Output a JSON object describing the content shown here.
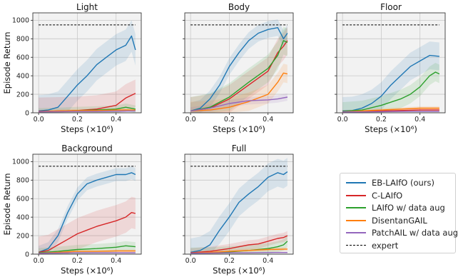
{
  "chart_data": {
    "type": "line",
    "ylabel": "Episode Return",
    "xlabel": "Steps (×10⁶)",
    "x_ticks": [
      "0.0",
      "0.2",
      "0.4"
    ],
    "y_ticks": [
      "0",
      "200",
      "400",
      "600",
      "800",
      "1000"
    ],
    "xlim": [
      -0.03,
      0.53
    ],
    "ylim": [
      0,
      1080
    ],
    "expert_value": 950,
    "grid": true,
    "legend_placement": "bottom-right",
    "series_styles": [
      {
        "name": "EB-LAIfO (ours)",
        "color": "#1f77b4"
      },
      {
        "name": "C-LAIfO",
        "color": "#d62728"
      },
      {
        "name": "LAIfO w/ data aug",
        "color": "#2ca02c"
      },
      {
        "name": "DisentanGAIL",
        "color": "#ff7f0e"
      },
      {
        "name": "PatchAIL w/ data aug",
        "color": "#9467bd"
      },
      {
        "name": "expert",
        "color": "#000000",
        "dashed": true
      }
    ],
    "panels": [
      {
        "title": "Light",
        "series": [
          {
            "name": "EB-LAIfO (ours)",
            "points": [
              [
                0,
                20
              ],
              [
                0.05,
                30
              ],
              [
                0.1,
                60
              ],
              [
                0.15,
                180
              ],
              [
                0.2,
                300
              ],
              [
                0.25,
                400
              ],
              [
                0.3,
                520
              ],
              [
                0.35,
                600
              ],
              [
                0.4,
                680
              ],
              [
                0.45,
                730
              ],
              [
                0.48,
                830
              ],
              [
                0.5,
                680
              ]
            ],
            "band": 170
          },
          {
            "name": "C-LAIfO",
            "points": [
              [
                0,
                15
              ],
              [
                0.1,
                20
              ],
              [
                0.2,
                25
              ],
              [
                0.3,
                40
              ],
              [
                0.4,
                80
              ],
              [
                0.45,
                160
              ],
              [
                0.5,
                210
              ]
            ],
            "band": 150
          },
          {
            "name": "LAIfO w/ data aug",
            "points": [
              [
                0,
                10
              ],
              [
                0.1,
                15
              ],
              [
                0.2,
                25
              ],
              [
                0.3,
                30
              ],
              [
                0.4,
                40
              ],
              [
                0.45,
                60
              ],
              [
                0.5,
                40
              ]
            ],
            "band": 40
          },
          {
            "name": "DisentanGAIL",
            "points": [
              [
                0,
                10
              ],
              [
                0.1,
                20
              ],
              [
                0.2,
                25
              ],
              [
                0.3,
                25
              ],
              [
                0.4,
                30
              ],
              [
                0.5,
                30
              ]
            ],
            "band": 15
          },
          {
            "name": "PatchAIL w/ data aug",
            "points": [
              [
                0,
                10
              ],
              [
                0.1,
                12
              ],
              [
                0.2,
                15
              ],
              [
                0.3,
                15
              ],
              [
                0.4,
                18
              ],
              [
                0.5,
                20
              ]
            ],
            "band": 8
          }
        ]
      },
      {
        "title": "Body",
        "series": [
          {
            "name": "EB-LAIfO (ours)",
            "points": [
              [
                0,
                20
              ],
              [
                0.05,
                50
              ],
              [
                0.1,
                150
              ],
              [
                0.15,
                300
              ],
              [
                0.2,
                500
              ],
              [
                0.25,
                650
              ],
              [
                0.3,
                780
              ],
              [
                0.35,
                860
              ],
              [
                0.4,
                900
              ],
              [
                0.45,
                920
              ],
              [
                0.48,
                800
              ],
              [
                0.5,
                860
              ]
            ],
            "band": 90
          },
          {
            "name": "C-LAIfO",
            "points": [
              [
                0,
                20
              ],
              [
                0.1,
                50
              ],
              [
                0.2,
                150
              ],
              [
                0.3,
                300
              ],
              [
                0.4,
                450
              ],
              [
                0.45,
                650
              ],
              [
                0.48,
                720
              ],
              [
                0.5,
                780
              ]
            ],
            "band": 150
          },
          {
            "name": "LAIfO w/ data aug",
            "points": [
              [
                0,
                20
              ],
              [
                0.1,
                60
              ],
              [
                0.2,
                170
              ],
              [
                0.3,
                330
              ],
              [
                0.4,
                480
              ],
              [
                0.45,
                620
              ],
              [
                0.48,
                780
              ],
              [
                0.5,
                760
              ]
            ],
            "band": 150
          },
          {
            "name": "DisentanGAIL",
            "points": [
              [
                0,
                20
              ],
              [
                0.1,
                30
              ],
              [
                0.2,
                60
              ],
              [
                0.3,
                120
              ],
              [
                0.4,
                200
              ],
              [
                0.45,
                330
              ],
              [
                0.48,
                430
              ],
              [
                0.5,
                420
              ]
            ],
            "band": 100
          },
          {
            "name": "PatchAIL w/ data aug",
            "points": [
              [
                0,
                20
              ],
              [
                0.1,
                50
              ],
              [
                0.2,
                100
              ],
              [
                0.3,
                130
              ],
              [
                0.4,
                140
              ],
              [
                0.45,
                150
              ],
              [
                0.5,
                170
              ]
            ],
            "band": 40
          }
        ]
      },
      {
        "title": "Floor",
        "series": [
          {
            "name": "EB-LAIfO (ours)",
            "points": [
              [
                0,
                20
              ],
              [
                0.05,
                25
              ],
              [
                0.1,
                50
              ],
              [
                0.15,
                100
              ],
              [
                0.2,
                180
              ],
              [
                0.25,
                300
              ],
              [
                0.3,
                400
              ],
              [
                0.35,
                500
              ],
              [
                0.4,
                560
              ],
              [
                0.45,
                620
              ],
              [
                0.5,
                610
              ]
            ],
            "band": 150
          },
          {
            "name": "C-LAIfO",
            "points": [
              [
                0,
                15
              ],
              [
                0.1,
                15
              ],
              [
                0.2,
                20
              ],
              [
                0.3,
                25
              ],
              [
                0.4,
                30
              ],
              [
                0.5,
                30
              ]
            ],
            "band": 15
          },
          {
            "name": "LAIfO w/ data aug",
            "points": [
              [
                0,
                15
              ],
              [
                0.1,
                30
              ],
              [
                0.2,
                80
              ],
              [
                0.3,
                150
              ],
              [
                0.35,
                200
              ],
              [
                0.4,
                280
              ],
              [
                0.45,
                400
              ],
              [
                0.48,
                440
              ],
              [
                0.5,
                420
              ]
            ],
            "band": 100
          },
          {
            "name": "DisentanGAIL",
            "points": [
              [
                0,
                10
              ],
              [
                0.1,
                20
              ],
              [
                0.2,
                30
              ],
              [
                0.3,
                40
              ],
              [
                0.4,
                50
              ],
              [
                0.5,
                50
              ]
            ],
            "band": 20
          },
          {
            "name": "PatchAIL w/ data aug",
            "points": [
              [
                0,
                10
              ],
              [
                0.1,
                10
              ],
              [
                0.2,
                12
              ],
              [
                0.3,
                15
              ],
              [
                0.4,
                15
              ],
              [
                0.5,
                15
              ]
            ],
            "band": 8
          }
        ]
      },
      {
        "title": "Background",
        "series": [
          {
            "name": "EB-LAIfO (ours)",
            "points": [
              [
                0,
                20
              ],
              [
                0.05,
                60
              ],
              [
                0.1,
                200
              ],
              [
                0.15,
                450
              ],
              [
                0.2,
                650
              ],
              [
                0.25,
                760
              ],
              [
                0.3,
                800
              ],
              [
                0.35,
                830
              ],
              [
                0.4,
                860
              ],
              [
                0.45,
                860
              ],
              [
                0.48,
                880
              ],
              [
                0.5,
                860
              ]
            ],
            "band": 70
          },
          {
            "name": "C-LAIfO",
            "points": [
              [
                0,
                20
              ],
              [
                0.05,
                40
              ],
              [
                0.1,
                100
              ],
              [
                0.15,
                160
              ],
              [
                0.2,
                220
              ],
              [
                0.25,
                260
              ],
              [
                0.3,
                300
              ],
              [
                0.35,
                330
              ],
              [
                0.4,
                360
              ],
              [
                0.45,
                400
              ],
              [
                0.48,
                450
              ],
              [
                0.5,
                440
              ]
            ],
            "band": 170
          },
          {
            "name": "LAIfO w/ data aug",
            "points": [
              [
                0,
                15
              ],
              [
                0.1,
                30
              ],
              [
                0.2,
                50
              ],
              [
                0.3,
                60
              ],
              [
                0.4,
                75
              ],
              [
                0.45,
                90
              ],
              [
                0.5,
                80
              ]
            ],
            "band": 50
          },
          {
            "name": "DisentanGAIL",
            "points": [
              [
                0,
                10
              ],
              [
                0.1,
                20
              ],
              [
                0.2,
                30
              ],
              [
                0.3,
                30
              ],
              [
                0.4,
                35
              ],
              [
                0.5,
                35
              ]
            ],
            "band": 15
          },
          {
            "name": "PatchAIL w/ data aug",
            "points": [
              [
                0,
                10
              ],
              [
                0.1,
                12
              ],
              [
                0.2,
                15
              ],
              [
                0.3,
                15
              ],
              [
                0.4,
                15
              ],
              [
                0.5,
                15
              ]
            ],
            "band": 8
          }
        ]
      },
      {
        "title": "Full",
        "series": [
          {
            "name": "EB-LAIfO (ours)",
            "points": [
              [
                0,
                20
              ],
              [
                0.05,
                40
              ],
              [
                0.1,
                100
              ],
              [
                0.15,
                260
              ],
              [
                0.2,
                400
              ],
              [
                0.25,
                560
              ],
              [
                0.3,
                650
              ],
              [
                0.35,
                730
              ],
              [
                0.4,
                830
              ],
              [
                0.45,
                880
              ],
              [
                0.48,
                860
              ],
              [
                0.5,
                890
              ]
            ],
            "band": 150
          },
          {
            "name": "C-LAIfO",
            "points": [
              [
                0,
                15
              ],
              [
                0.1,
                30
              ],
              [
                0.2,
                60
              ],
              [
                0.3,
                100
              ],
              [
                0.35,
                110
              ],
              [
                0.4,
                140
              ],
              [
                0.45,
                170
              ],
              [
                0.48,
                180
              ],
              [
                0.5,
                200
              ]
            ],
            "band": 50
          },
          {
            "name": "LAIfO w/ data aug",
            "points": [
              [
                0,
                10
              ],
              [
                0.1,
                15
              ],
              [
                0.2,
                25
              ],
              [
                0.3,
                40
              ],
              [
                0.4,
                60
              ],
              [
                0.45,
                80
              ],
              [
                0.48,
                100
              ],
              [
                0.5,
                140
              ]
            ],
            "band": 60
          },
          {
            "name": "DisentanGAIL",
            "points": [
              [
                0,
                10
              ],
              [
                0.1,
                20
              ],
              [
                0.2,
                30
              ],
              [
                0.3,
                40
              ],
              [
                0.4,
                50
              ],
              [
                0.5,
                55
              ]
            ],
            "band": 20
          },
          {
            "name": "PatchAIL w/ data aug",
            "points": [
              [
                0,
                10
              ],
              [
                0.1,
                12
              ],
              [
                0.2,
                15
              ],
              [
                0.3,
                15
              ],
              [
                0.4,
                18
              ],
              [
                0.5,
                18
              ]
            ],
            "band": 8
          }
        ]
      }
    ]
  }
}
